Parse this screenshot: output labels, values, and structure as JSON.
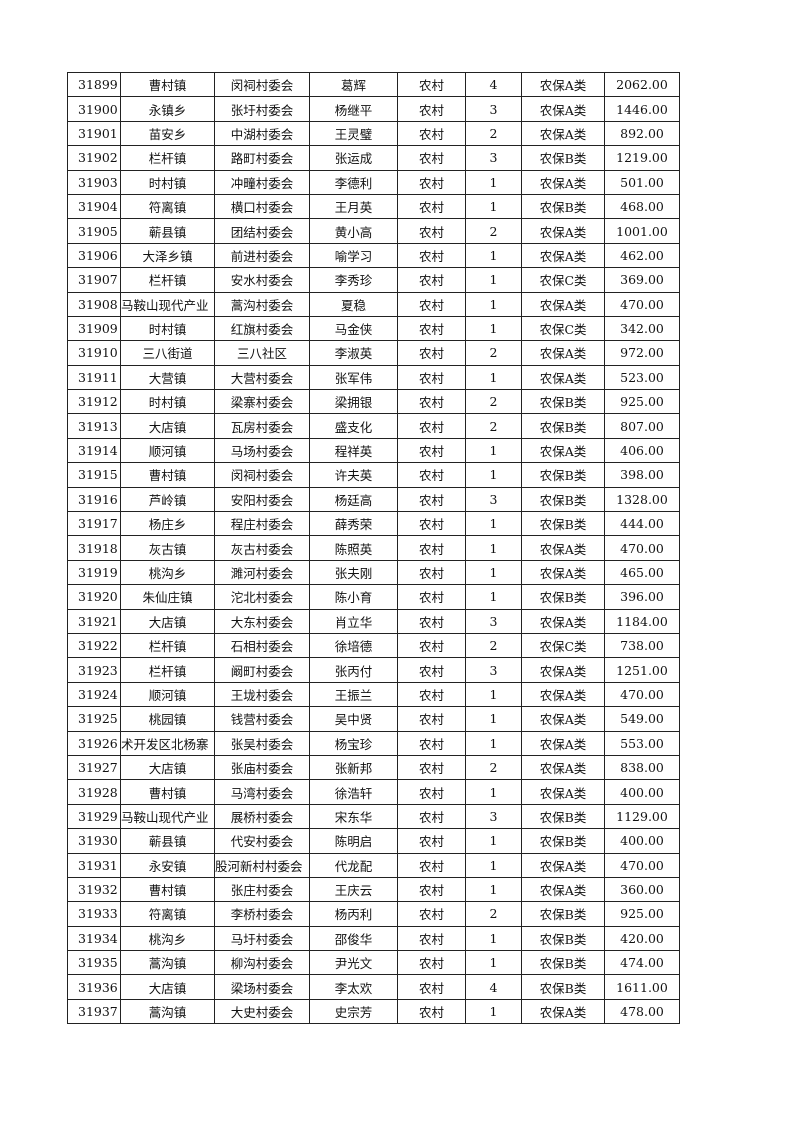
{
  "table": {
    "rows": [
      [
        "31899",
        "曹村镇",
        "闵祠村委会",
        "葛辉",
        "农村",
        "4",
        "农保A类",
        "2062.00"
      ],
      [
        "31900",
        "永镇乡",
        "张圩村委会",
        "杨继平",
        "农村",
        "3",
        "农保A类",
        "1446.00"
      ],
      [
        "31901",
        "苗安乡",
        "中湖村委会",
        "王灵璧",
        "农村",
        "2",
        "农保A类",
        "892.00"
      ],
      [
        "31902",
        "栏杆镇",
        "路町村委会",
        "张运成",
        "农村",
        "3",
        "农保B类",
        "1219.00"
      ],
      [
        "31903",
        "时村镇",
        "冲疃村委会",
        "李德利",
        "农村",
        "1",
        "农保A类",
        "501.00"
      ],
      [
        "31904",
        "符离镇",
        "横口村委会",
        "王月英",
        "农村",
        "1",
        "农保B类",
        "468.00"
      ],
      [
        "31905",
        "蕲县镇",
        "团结村委会",
        "黄小高",
        "农村",
        "2",
        "农保A类",
        "1001.00"
      ],
      [
        "31906",
        "大泽乡镇",
        "前进村委会",
        "喻学习",
        "农村",
        "1",
        "农保A类",
        "462.00"
      ],
      [
        "31907",
        "栏杆镇",
        "安水村委会",
        "李秀珍",
        "农村",
        "1",
        "农保C类",
        "369.00"
      ],
      [
        "31908",
        "马鞍山现代产业",
        "蒿沟村委会",
        "夏稳",
        "农村",
        "1",
        "农保A类",
        "470.00"
      ],
      [
        "31909",
        "时村镇",
        "红旗村委会",
        "马金侠",
        "农村",
        "1",
        "农保C类",
        "342.00"
      ],
      [
        "31910",
        "三八街道",
        "三八社区",
        "李淑英",
        "农村",
        "2",
        "农保A类",
        "972.00"
      ],
      [
        "31911",
        "大营镇",
        "大营村委会",
        "张军伟",
        "农村",
        "1",
        "农保A类",
        "523.00"
      ],
      [
        "31912",
        "时村镇",
        "梁寨村委会",
        "梁拥银",
        "农村",
        "2",
        "农保B类",
        "925.00"
      ],
      [
        "31913",
        "大店镇",
        "瓦房村委会",
        "盛支化",
        "农村",
        "2",
        "农保B类",
        "807.00"
      ],
      [
        "31914",
        "顺河镇",
        "马场村委会",
        "程祥英",
        "农村",
        "1",
        "农保A类",
        "406.00"
      ],
      [
        "31915",
        "曹村镇",
        "闵祠村委会",
        "许夫英",
        "农村",
        "1",
        "农保B类",
        "398.00"
      ],
      [
        "31916",
        "芦岭镇",
        "安阳村委会",
        "杨廷高",
        "农村",
        "3",
        "农保B类",
        "1328.00"
      ],
      [
        "31917",
        "杨庄乡",
        "程庄村委会",
        "薛秀荣",
        "农村",
        "1",
        "农保B类",
        "444.00"
      ],
      [
        "31918",
        "灰古镇",
        "灰古村委会",
        "陈照英",
        "农村",
        "1",
        "农保A类",
        "470.00"
      ],
      [
        "31919",
        "桃沟乡",
        "濉河村委会",
        "张夫刚",
        "农村",
        "1",
        "农保A类",
        "465.00"
      ],
      [
        "31920",
        "朱仙庄镇",
        "沱北村委会",
        "陈小育",
        "农村",
        "1",
        "农保B类",
        "396.00"
      ],
      [
        "31921",
        "大店镇",
        "大东村委会",
        "肖立华",
        "农村",
        "3",
        "农保A类",
        "1184.00"
      ],
      [
        "31922",
        "栏杆镇",
        "石相村委会",
        "徐培德",
        "农村",
        "2",
        "农保C类",
        "738.00"
      ],
      [
        "31923",
        "栏杆镇",
        "阚町村委会",
        "张丙付",
        "农村",
        "3",
        "农保A类",
        "1251.00"
      ],
      [
        "31924",
        "顺河镇",
        "王垅村委会",
        "王振兰",
        "农村",
        "1",
        "农保A类",
        "470.00"
      ],
      [
        "31925",
        "桃园镇",
        "钱营村委会",
        "吴中贤",
        "农村",
        "1",
        "农保A类",
        "549.00"
      ],
      [
        "31926",
        "术开发区北杨寨",
        "张吴村委会",
        "杨宝珍",
        "农村",
        "1",
        "农保A类",
        "553.00"
      ],
      [
        "31927",
        "大店镇",
        "张庙村委会",
        "张新邦",
        "农村",
        "2",
        "农保A类",
        "838.00"
      ],
      [
        "31928",
        "曹村镇",
        "马湾村委会",
        "徐浩轩",
        "农村",
        "1",
        "农保A类",
        "400.00"
      ],
      [
        "31929",
        "马鞍山现代产业",
        "展桥村委会",
        "宋东华",
        "农村",
        "3",
        "农保B类",
        "1129.00"
      ],
      [
        "31930",
        "蕲县镇",
        "代安村委会",
        "陈明启",
        "农村",
        "1",
        "农保B类",
        "400.00"
      ],
      [
        "31931",
        "永安镇",
        "股河新村村委会",
        "代龙配",
        "农村",
        "1",
        "农保A类",
        "470.00"
      ],
      [
        "31932",
        "曹村镇",
        "张庄村委会",
        "王庆云",
        "农村",
        "1",
        "农保A类",
        "360.00"
      ],
      [
        "31933",
        "符离镇",
        "李桥村委会",
        "杨丙利",
        "农村",
        "2",
        "农保B类",
        "925.00"
      ],
      [
        "31934",
        "桃沟乡",
        "马圩村委会",
        "邵俊华",
        "农村",
        "1",
        "农保B类",
        "420.00"
      ],
      [
        "31935",
        "蒿沟镇",
        "柳沟村委会",
        "尹光文",
        "农村",
        "1",
        "农保B类",
        "474.00"
      ],
      [
        "31936",
        "大店镇",
        "梁场村委会",
        "李太欢",
        "农村",
        "4",
        "农保B类",
        "1611.00"
      ],
      [
        "31937",
        "蒿沟镇",
        "大史村委会",
        "史宗芳",
        "农村",
        "1",
        "农保A类",
        "478.00"
      ]
    ]
  }
}
